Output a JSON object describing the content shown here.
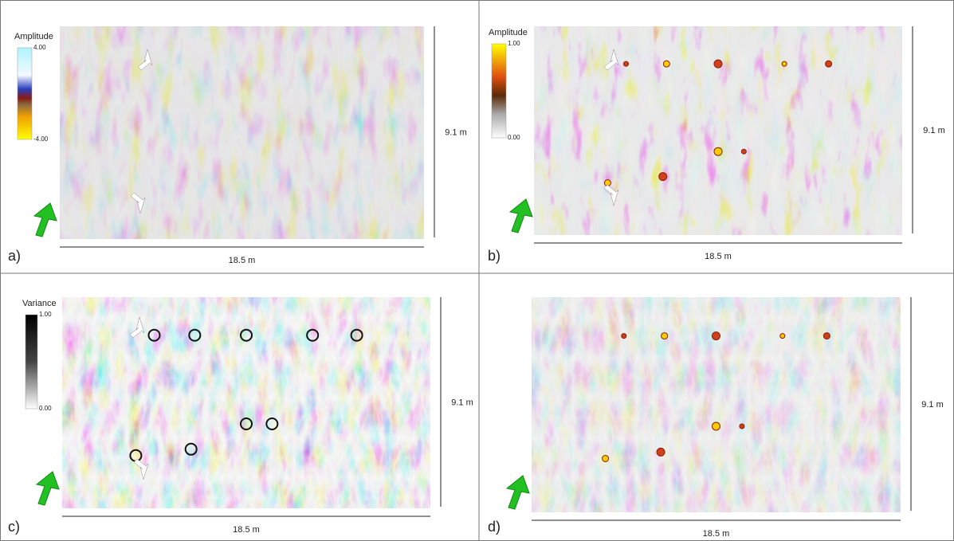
{
  "panels": [
    {
      "label": "a)",
      "width": "18.5 m",
      "height": "9.1 m",
      "colorbar": {
        "title": "Amplitude",
        "max": "4.00",
        "min": "-4.00"
      }
    },
    {
      "label": "b)",
      "width": "18.5 m",
      "height": "9.1 m",
      "colorbar": {
        "title": "Amplitude",
        "max": "1.00",
        "min": "0.00"
      }
    },
    {
      "label": "c)",
      "width": "18.5 m",
      "height": "9.1 m",
      "colorbar": {
        "title": "Variance",
        "max": "1.00",
        "min": "0.00"
      }
    },
    {
      "label": "d)",
      "width": "18.5 m",
      "height": "9.1 m"
    }
  ]
}
